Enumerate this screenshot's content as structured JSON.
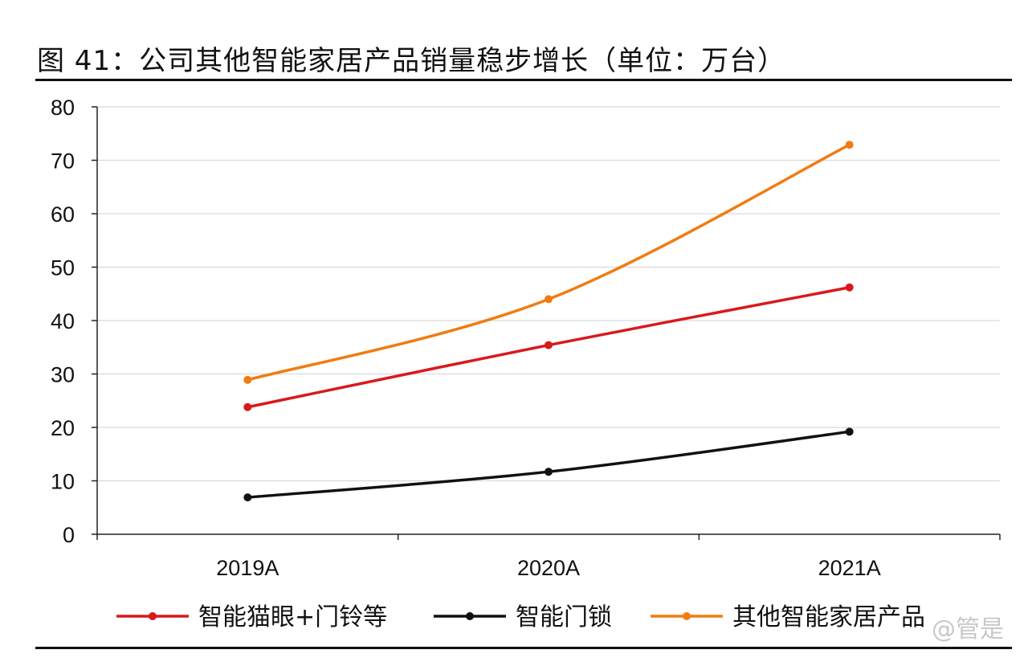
{
  "title": "图 41：公司其他智能家居产品销量稳步增长（单位：万台）",
  "watermark": "@管是",
  "chart_data": {
    "type": "line",
    "title": "图 41：公司其他智能家居产品销量稳步增长（单位：万台）",
    "xlabel": "",
    "ylabel": "",
    "categories": [
      "2019A",
      "2020A",
      "2021A"
    ],
    "ylim": [
      0,
      80
    ],
    "yticks": [
      0,
      10,
      20,
      30,
      40,
      50,
      60,
      70,
      80
    ],
    "grid": true,
    "smooth": true,
    "legend_position": "bottom",
    "series": [
      {
        "name": "智能猫眼+门铃等",
        "color": "#d9191c",
        "values": [
          23.8,
          35.4,
          46.2
        ]
      },
      {
        "name": "智能门锁",
        "color": "#111111",
        "values": [
          6.9,
          11.7,
          19.2
        ]
      },
      {
        "name": "其他智能家居产品",
        "color": "#f07c12",
        "values": [
          28.9,
          44.0,
          72.9
        ]
      }
    ]
  }
}
